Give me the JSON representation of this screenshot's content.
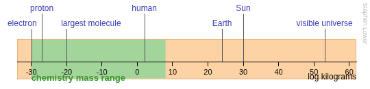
{
  "chart_data": {
    "type": "scatter",
    "color": "#fdd3a5",
    "xlabel": "log kilograms",
    "xlim": [
      -34,
      62
    ],
    "xticks": [
      -30,
      -20,
      -10,
      0,
      10,
      20,
      30,
      40,
      50,
      60
    ],
    "ranges": [
      {
        "name": "chemistry mass range",
        "from": -30,
        "to": 8,
        "color": "#a3d49a"
      }
    ],
    "points": {
      "labels": [
        "electron",
        "proton",
        "largest molecule",
        "human",
        "Earth",
        "Sun",
        "visible universe"
      ],
      "x": [
        -30,
        -27,
        -20,
        2,
        24,
        30,
        53
      ],
      "color": "#3a3ab8"
    },
    "annotation": "Stephen Lower"
  }
}
